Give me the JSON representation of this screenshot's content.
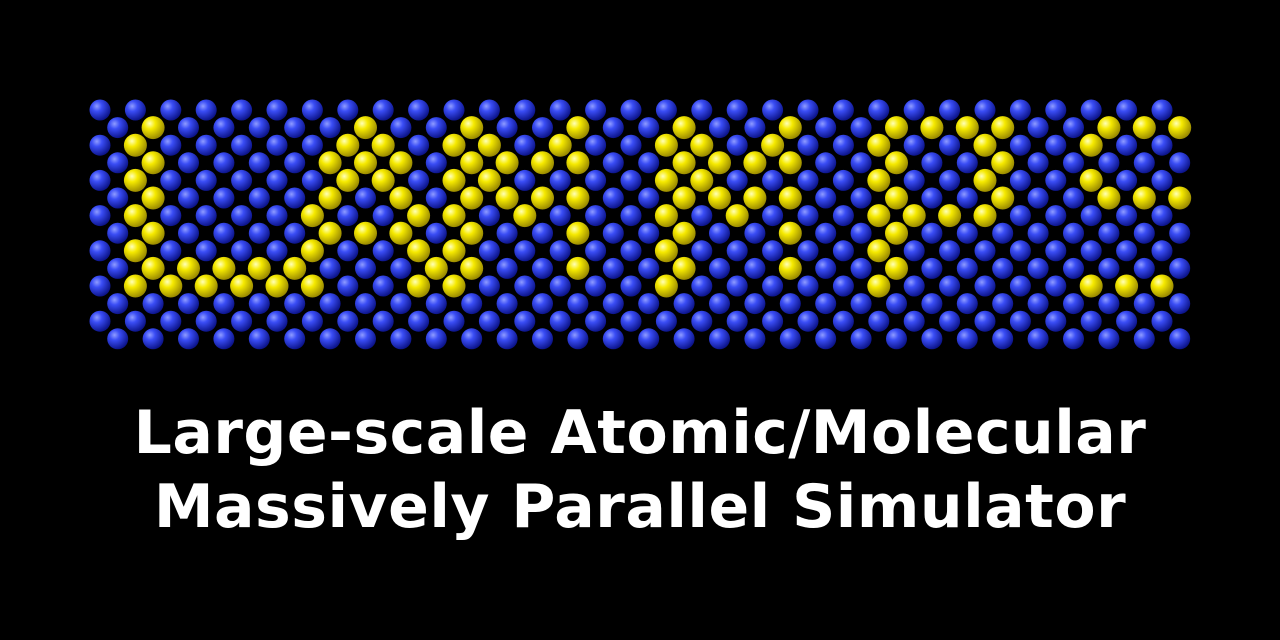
{
  "logo": {
    "word": "LAMMPS",
    "atom_colors": {
      "background_atom": "#2c3ff0",
      "letter_atom": "#f2e600"
    }
  },
  "caption": {
    "line1": "Large-scale Atomic/Molecular",
    "line2": "Massively Parallel Simulator"
  }
}
